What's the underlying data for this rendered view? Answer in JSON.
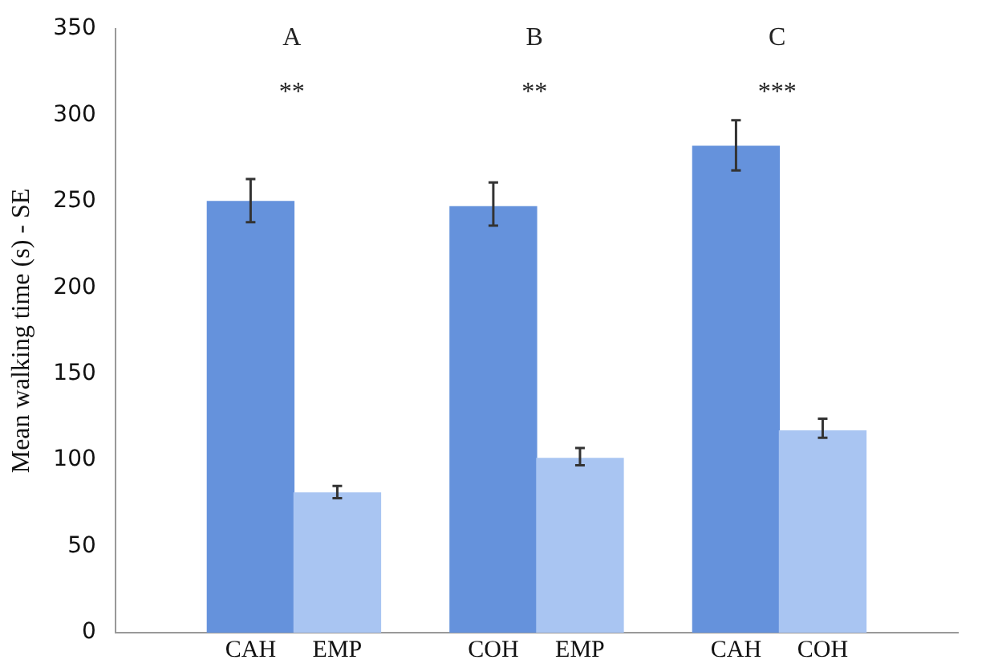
{
  "chart_data": {
    "type": "bar",
    "ylabel": "Mean walking time (s) - SE",
    "categories": [
      "CAH",
      "EMP",
      "COH",
      "EMP",
      "CAH",
      "COH"
    ],
    "values": [
      250,
      81,
      247,
      101,
      282,
      117
    ],
    "errors": [
      [
        238,
        263
      ],
      [
        78,
        85
      ],
      [
        236,
        261
      ],
      [
        97,
        107
      ],
      [
        268,
        297
      ],
      [
        113,
        124
      ]
    ],
    "colors": [
      "#6592dc",
      "#a9c5f2",
      "#6592dc",
      "#a9c5f2",
      "#6592dc",
      "#a9c5f2"
    ],
    "ylim": [
      0,
      350
    ],
    "yticks": [
      0,
      50,
      100,
      150,
      200,
      250,
      300,
      350
    ],
    "grid": false,
    "legend": false,
    "annotations": [
      "A",
      "**",
      "B",
      "**",
      "C",
      "***"
    ]
  }
}
